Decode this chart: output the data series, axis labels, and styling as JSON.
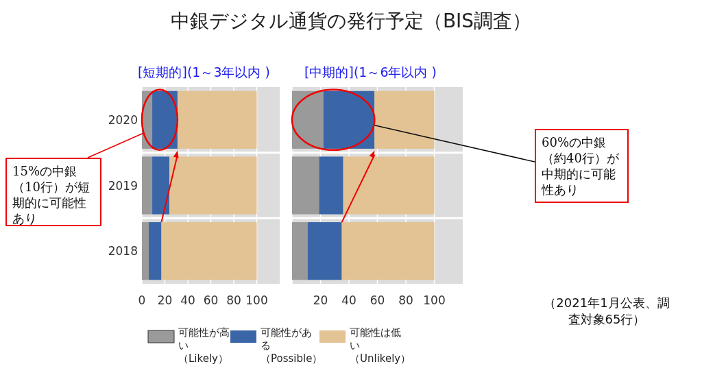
{
  "chart_data": [
    {
      "type": "bar",
      "orientation": "horizontal",
      "stacked": true,
      "title": "中銀デジタル通貨の発行予定（BIS調査）",
      "subtitle": "[短期的](1～3年以内 )",
      "categories": [
        "2020",
        "2019",
        "2018"
      ],
      "series": [
        {
          "name": "可能性が高い（Likely）",
          "color": "#9a9a9a",
          "values": [
            9,
            9,
            6
          ]
        },
        {
          "name": "可能性がある（Possible）",
          "color": "#3a66a8",
          "values": [
            22,
            15,
            11
          ]
        },
        {
          "name": "可能性は低い（Unlikely）",
          "color": "#e3c393",
          "values": [
            69,
            76,
            83
          ]
        }
      ],
      "xlim": [
        0,
        120
      ],
      "xticks": [
        0,
        20,
        40,
        60,
        80,
        100
      ],
      "grid": "x",
      "legend": "bottom",
      "annotations": [
        "15%の中銀（10行）が短期的に可能性あり"
      ]
    },
    {
      "type": "bar",
      "orientation": "horizontal",
      "stacked": true,
      "subtitle": "[中期的](1～6年以内 )",
      "categories": [
        "2020",
        "2019",
        "2018"
      ],
      "series": [
        {
          "color": "#9a9a9a",
          "values": [
            22,
            19,
            11
          ]
        },
        {
          "color": "#3a66a8",
          "values": [
            36,
            17,
            24
          ]
        },
        {
          "color": "#e3c393",
          "values": [
            42,
            64,
            65
          ]
        }
      ],
      "xlim": [
        0,
        120
      ],
      "xticks": [
        {
          "value": 0,
          "label": null
        },
        20,
        40,
        60,
        80,
        100
      ],
      "grid": "x",
      "tick_labels": "x",
      "annotations": [
        "60%の中銀（約40行）が中期的に可能性あり",
        "（2021年1月公表、調査対象65行）"
      ]
    }
  ]
}
